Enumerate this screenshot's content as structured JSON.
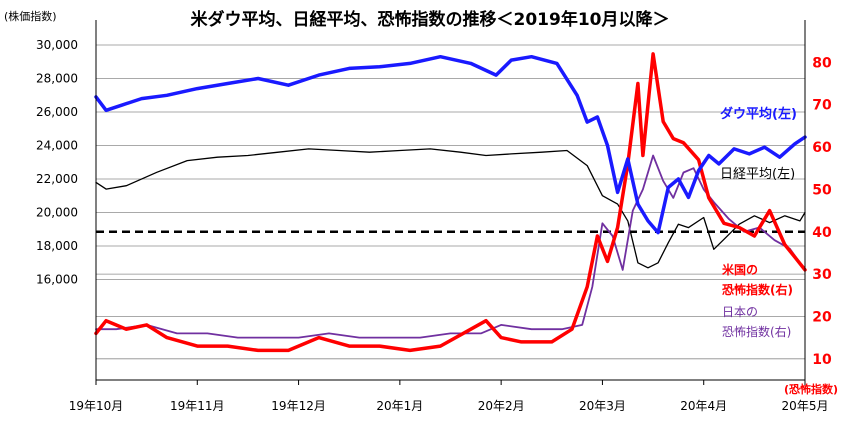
{
  "chart_data": {
    "type": "line",
    "title": "米ダウ平均、日経平均、恐怖指数の推移＜2019年10月以降＞",
    "left_axis": {
      "label": "(株価指数)",
      "ticks": [
        16000,
        18000,
        20000,
        22000,
        24000,
        26000,
        28000,
        30000
      ],
      "tick_labels": [
        "16,000",
        "18,000",
        "20,000",
        "22,000",
        "24,000",
        "26,000",
        "28,000",
        "30,000"
      ],
      "range": [
        10000,
        30000
      ]
    },
    "right_axis": {
      "label": "(恐怖指数)",
      "ticks": [
        10,
        20,
        30,
        40,
        50,
        60,
        70,
        80
      ],
      "tick_labels": [
        "10",
        "20",
        "30",
        "40",
        "50",
        "60",
        "70",
        "80"
      ],
      "range": [
        5,
        90
      ]
    },
    "x_axis": {
      "labels": [
        "19年10月",
        "19年11月",
        "19年12月",
        "20年1月",
        "20年2月",
        "20年3月",
        "20年4月",
        "20年5月"
      ],
      "range": [
        0,
        7
      ]
    },
    "grid": true,
    "reference_line": {
      "axis": "right",
      "value": 40,
      "style": "dashed",
      "color": "#000000"
    },
    "series": [
      {
        "name": "ダウ平均(左)",
        "axis": "left",
        "color": "#1a1aff",
        "width": 3.5,
        "x": [
          0,
          0.1,
          0.25,
          0.45,
          0.7,
          1.0,
          1.3,
          1.6,
          1.9,
          2.2,
          2.5,
          2.8,
          3.1,
          3.4,
          3.7,
          3.95,
          4.1,
          4.3,
          4.55,
          4.75,
          4.85,
          4.95,
          5.05,
          5.15,
          5.25,
          5.35,
          5.45,
          5.55,
          5.65,
          5.75,
          5.85,
          5.95,
          6.05,
          6.15,
          6.3,
          6.45,
          6.6,
          6.75,
          6.9,
          7.0
        ],
        "values": [
          26900,
          26100,
          26400,
          26800,
          27000,
          27400,
          27700,
          28000,
          27600,
          28200,
          28600,
          28700,
          28900,
          29300,
          28900,
          28200,
          29100,
          29300,
          28900,
          27000,
          25400,
          25700,
          24000,
          21200,
          23200,
          20500,
          19500,
          18800,
          21500,
          22000,
          20900,
          22500,
          23400,
          22900,
          23800,
          23500,
          23900,
          23300,
          24100,
          24500
        ]
      },
      {
        "name": "日経平均(左)",
        "axis": "left",
        "color": "#000000",
        "width": 1.3,
        "x": [
          0,
          0.1,
          0.3,
          0.6,
          0.9,
          1.2,
          1.5,
          1.8,
          2.1,
          2.4,
          2.7,
          3.0,
          3.3,
          3.6,
          3.85,
          4.1,
          4.4,
          4.65,
          4.85,
          5.0,
          5.15,
          5.25,
          5.35,
          5.45,
          5.55,
          5.65,
          5.75,
          5.85,
          6.0,
          6.1,
          6.2,
          6.35,
          6.5,
          6.65,
          6.8,
          6.95,
          7.0
        ],
        "values": [
          21800,
          21400,
          21600,
          22400,
          23100,
          23300,
          23400,
          23600,
          23800,
          23700,
          23600,
          23700,
          23800,
          23600,
          23400,
          23500,
          23600,
          23700,
          22800,
          21000,
          20500,
          19500,
          17000,
          16700,
          17000,
          18200,
          19300,
          19100,
          19700,
          17800,
          18400,
          19300,
          19800,
          19400,
          19800,
          19500,
          20000
        ]
      },
      {
        "name": "米国の恐怖指数(右)",
        "axis": "right",
        "color": "#ff0000",
        "width": 3.5,
        "x": [
          0,
          0.1,
          0.3,
          0.5,
          0.7,
          1.0,
          1.3,
          1.6,
          1.9,
          2.2,
          2.5,
          2.8,
          3.1,
          3.4,
          3.7,
          3.85,
          4.0,
          4.2,
          4.5,
          4.7,
          4.85,
          4.95,
          5.05,
          5.15,
          5.25,
          5.35,
          5.4,
          5.5,
          5.6,
          5.7,
          5.8,
          5.95,
          6.05,
          6.2,
          6.35,
          6.5,
          6.65,
          6.8,
          6.9,
          7.0
        ],
        "values": [
          16,
          19,
          17,
          18,
          15,
          13,
          13,
          12,
          12,
          15,
          13,
          13,
          12,
          13,
          17,
          19,
          15,
          14,
          14,
          17,
          27,
          39,
          33,
          41,
          56,
          75,
          58,
          82,
          66,
          62,
          61,
          57,
          48,
          42,
          41,
          39,
          45,
          37,
          34,
          31
        ]
      },
      {
        "name": "日本の恐怖指数(右)",
        "axis": "right",
        "color": "#7030a0",
        "width": 1.8,
        "x": [
          0,
          0.2,
          0.5,
          0.8,
          1.1,
          1.4,
          1.7,
          2.0,
          2.3,
          2.6,
          2.9,
          3.2,
          3.5,
          3.8,
          4.0,
          4.3,
          4.6,
          4.8,
          4.9,
          5.0,
          5.1,
          5.2,
          5.3,
          5.4,
          5.5,
          5.6,
          5.7,
          5.8,
          5.9,
          6.0,
          6.1,
          6.25,
          6.4,
          6.55,
          6.7,
          6.85,
          7.0
        ],
        "values": [
          17,
          17,
          18,
          16,
          16,
          15,
          15,
          15,
          16,
          15,
          15,
          15,
          16,
          16,
          18,
          17,
          17,
          18,
          27,
          42,
          39,
          31,
          45,
          50,
          58,
          52,
          48,
          54,
          55,
          50,
          47,
          43,
          40,
          41,
          38,
          36,
          31
        ]
      }
    ],
    "annotations": {
      "dow": "ダウ平均(左)",
      "nikkei": "日経平均(左)",
      "us_vix_1": "米国の",
      "us_vix_2": "恐怖指数(右)",
      "jp_vix_1": "日本の",
      "jp_vix_2": "恐怖指数(右)"
    }
  }
}
